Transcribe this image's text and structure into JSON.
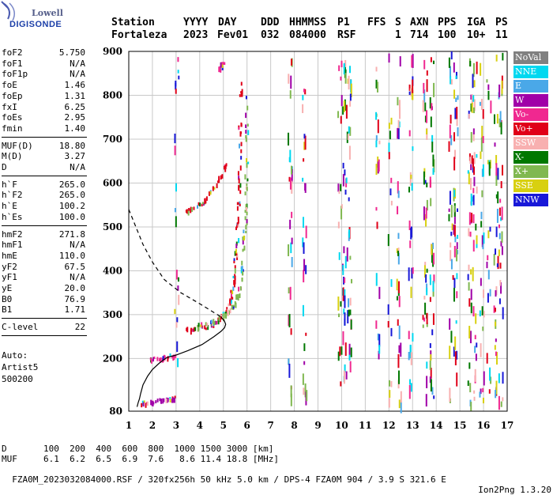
{
  "logo": {
    "line1": "Lowell",
    "line2": "DIGISONDE"
  },
  "header": {
    "labels": [
      "Station",
      "YYYY",
      "DAY",
      "DDD",
      "HHMMSS",
      "P1",
      "FFS",
      "S",
      "AXN",
      "PPS",
      "IGA",
      "PS"
    ],
    "values": [
      "Fortaleza",
      "2023",
      "Fev01",
      "032",
      "084000",
      "RSF",
      "1",
      "714",
      "100",
      "10+",
      "11"
    ]
  },
  "params": {
    "group1": [
      {
        "label": "foF2",
        "value": "5.750"
      },
      {
        "label": "foF1",
        "value": "N/A"
      },
      {
        "label": "foF1p",
        "value": "N/A"
      },
      {
        "label": "foE",
        "value": "1.46"
      },
      {
        "label": "foEp",
        "value": "1.31"
      },
      {
        "label": "fxI",
        "value": "6.25"
      },
      {
        "label": "foEs",
        "value": "2.95"
      },
      {
        "label": "fmin",
        "value": "1.40"
      }
    ],
    "group2": [
      {
        "label": "MUF(D)",
        "value": "18.80"
      },
      {
        "label": "M(D)",
        "value": "3.27"
      },
      {
        "label": "D",
        "value": "N/A"
      }
    ],
    "group3": [
      {
        "label": "h`F",
        "value": "265.0"
      },
      {
        "label": "h`F2",
        "value": "265.0"
      },
      {
        "label": "h`E",
        "value": "100.2"
      },
      {
        "label": "h`Es",
        "value": "100.0"
      }
    ],
    "group4": [
      {
        "label": "hmF2",
        "value": "271.8"
      },
      {
        "label": "hmF1",
        "value": "N/A"
      },
      {
        "label": "hmE",
        "value": "110.0"
      },
      {
        "label": "yF2",
        "value": "67.5"
      },
      {
        "label": "yF1",
        "value": "N/A"
      },
      {
        "label": "yE",
        "value": "20.0"
      },
      {
        "label": "B0",
        "value": "76.9"
      },
      {
        "label": "B1",
        "value": "1.71"
      }
    ],
    "group5": [
      {
        "label": "C-level",
        "value": "22"
      }
    ],
    "auto": [
      "Auto:",
      "Artist5",
      "500200"
    ]
  },
  "legend": [
    {
      "label": "NoVal",
      "color": "#808080"
    },
    {
      "label": "NNE",
      "color": "#00d8f0"
    },
    {
      "label": "E",
      "color": "#4aa8e8"
    },
    {
      "label": "W",
      "color": "#a000a8"
    },
    {
      "label": "Vo-",
      "color": "#f02890"
    },
    {
      "label": "Vo+",
      "color": "#e00018"
    },
    {
      "label": "SSW",
      "color": "#f8b0b0"
    },
    {
      "label": "X-",
      "color": "#007800"
    },
    {
      "label": "X+",
      "color": "#80b850"
    },
    {
      "label": "SSE",
      "color": "#d8d010"
    },
    {
      "label": "NNW",
      "color": "#1818d8"
    }
  ],
  "footer": {
    "d_label": "D",
    "d_values": [
      "100",
      "200",
      "400",
      "600",
      "800",
      "1000",
      "1500",
      "3000"
    ],
    "d_unit": "[km]",
    "muf_label": "MUF",
    "muf_values": [
      "6.1",
      "6.2",
      "6.5",
      "6.9",
      "7.6",
      "8.6",
      "11.4",
      "18.8"
    ],
    "muf_unit": "[MHz]",
    "file_line": "FZA0M_2023032084000.RSF / 320fx256h 50 kHz 5.0 km / DPS-4 FZA0M 904 / 3.9 S 321.6 E",
    "version": "Ion2Png 1.3.20"
  },
  "chart_data": {
    "type": "scatter",
    "xlim": [
      1,
      17
    ],
    "ylim": [
      80,
      900
    ],
    "xticks": [
      1,
      2,
      3,
      4,
      5,
      6,
      7,
      8,
      9,
      10,
      11,
      12,
      13,
      14,
      15,
      16,
      17
    ],
    "yticks": [
      80,
      200,
      300,
      400,
      500,
      600,
      700,
      800,
      900
    ],
    "grid": true,
    "legend_position": "right",
    "traces": [
      {
        "name": "F2 O-trace",
        "color": "#e00018",
        "points": [
          [
            3.3,
            268
          ],
          [
            3.7,
            270
          ],
          [
            4.1,
            272
          ],
          [
            4.5,
            280
          ],
          [
            4.8,
            292
          ],
          [
            5.0,
            305
          ],
          [
            5.2,
            320
          ],
          [
            5.3,
            340
          ],
          [
            5.4,
            370
          ],
          [
            5.45,
            400
          ],
          [
            5.5,
            440
          ],
          [
            5.55,
            480
          ],
          [
            5.6,
            520
          ],
          [
            5.62,
            560
          ],
          [
            5.65,
            620
          ],
          [
            5.68,
            700
          ],
          [
            5.7,
            800
          ],
          [
            5.72,
            830
          ]
        ]
      },
      {
        "name": "F2 X-trace",
        "color": "#80b850",
        "points": [
          [
            3.9,
            278
          ],
          [
            4.3,
            282
          ],
          [
            4.7,
            292
          ],
          [
            5.0,
            300
          ],
          [
            5.3,
            315
          ],
          [
            5.5,
            335
          ],
          [
            5.65,
            360
          ],
          [
            5.75,
            400
          ],
          [
            5.8,
            440
          ],
          [
            5.85,
            480
          ],
          [
            5.9,
            520
          ],
          [
            5.92,
            560
          ],
          [
            5.95,
            640
          ],
          [
            5.97,
            720
          ],
          [
            5.98,
            800
          ]
        ]
      },
      {
        "name": "Es trace",
        "color": "#a000a8",
        "points": [
          [
            1.5,
            100
          ],
          [
            1.8,
            102
          ],
          [
            2.1,
            105
          ],
          [
            2.4,
            108
          ],
          [
            2.7,
            110
          ],
          [
            2.9,
            112
          ]
        ]
      },
      {
        "name": "E trace",
        "color": "#f02890",
        "points": [
          [
            1.8,
            200
          ],
          [
            2.1,
            202
          ],
          [
            2.4,
            205
          ],
          [
            2.7,
            208
          ],
          [
            2.9,
            210
          ]
        ]
      },
      {
        "name": "2nd hop F2",
        "color": "#e00018",
        "points": [
          [
            3.3,
            540
          ],
          [
            3.7,
            545
          ],
          [
            4.0,
            555
          ],
          [
            4.3,
            570
          ],
          [
            4.6,
            590
          ],
          [
            4.9,
            620
          ],
          [
            5.1,
            650
          ]
        ]
      },
      {
        "name": "3rd hop",
        "color": "#f02890",
        "points": [
          [
            4.8,
            860
          ],
          [
            4.9,
            870
          ],
          [
            5.0,
            880
          ]
        ]
      }
    ],
    "profile": [
      [
        1.0,
        540
      ],
      [
        1.3,
        500
      ],
      [
        1.6,
        460
      ],
      [
        2.0,
        420
      ],
      [
        2.5,
        380
      ],
      [
        3.2,
        350
      ],
      [
        4.0,
        325
      ],
      [
        4.6,
        305
      ],
      [
        4.9,
        295
      ],
      [
        5.05,
        285
      ],
      [
        5.1,
        278
      ],
      [
        5.05,
        270
      ],
      [
        4.9,
        262
      ],
      [
        4.6,
        250
      ],
      [
        4.1,
        232
      ],
      [
        3.5,
        218
      ],
      [
        3.0,
        208
      ],
      [
        2.6,
        202
      ],
      [
        2.3,
        190
      ],
      [
        2.0,
        175
      ],
      [
        1.8,
        160
      ],
      [
        1.6,
        140
      ],
      [
        1.5,
        120
      ],
      [
        1.45,
        108
      ],
      [
        1.4,
        100
      ],
      [
        1.35,
        90
      ]
    ],
    "profile_split_y": 280,
    "noise_columns": [
      3.0,
      7.8,
      8.4,
      9.9,
      10.1,
      10.3,
      11.5,
      12.0,
      12.4,
      12.9,
      13.5,
      13.8,
      14.6,
      14.8,
      15.4,
      15.6,
      15.9,
      16.2,
      16.5,
      16.7
    ]
  }
}
